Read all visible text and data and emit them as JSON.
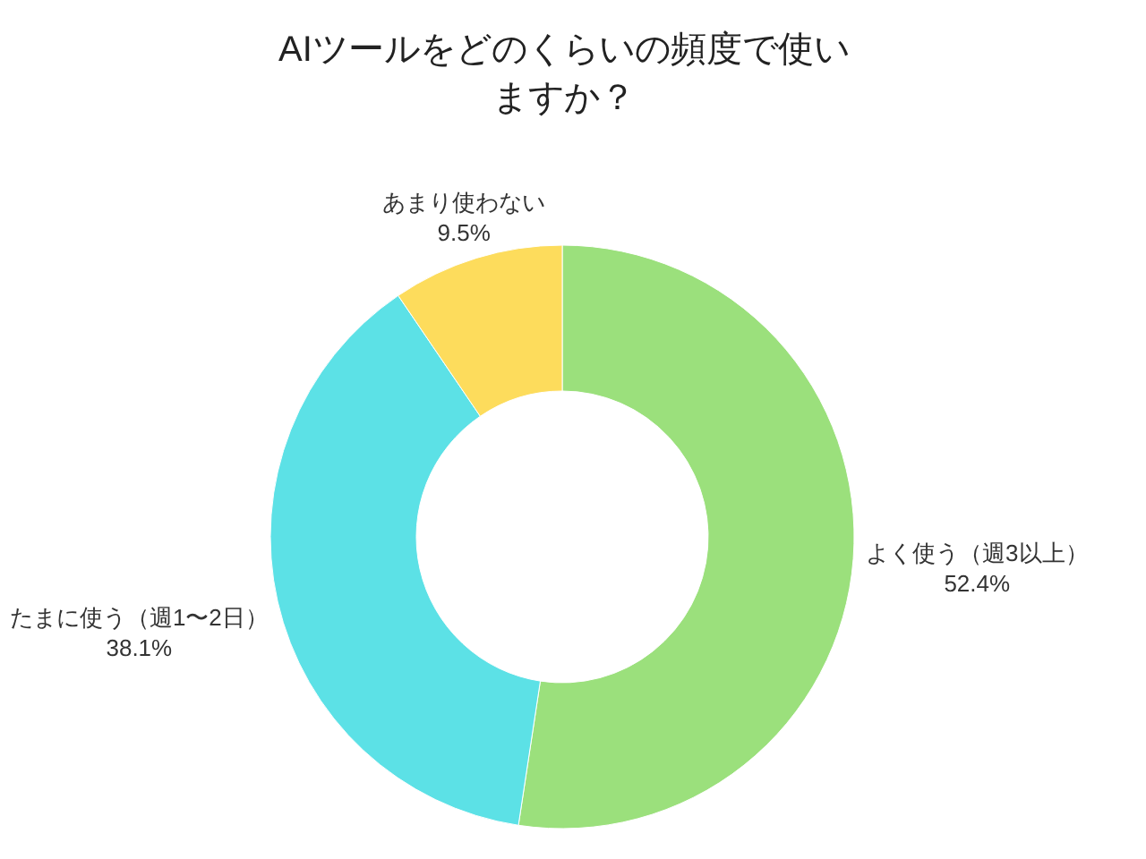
{
  "chart_data": {
    "type": "donut",
    "title": "AIツールをどのくらいの頻度で使いますか？",
    "categories": [
      "よく使う（週3以上）",
      "たまに使う（週1〜2日）",
      "あまり使わない"
    ],
    "values": [
      52.4,
      38.1,
      9.5
    ],
    "colors": [
      "#9be07c",
      "#5ce1e6",
      "#fddc5c"
    ],
    "value_labels": [
      "52.4%",
      "38.1%",
      "9.5%"
    ]
  }
}
